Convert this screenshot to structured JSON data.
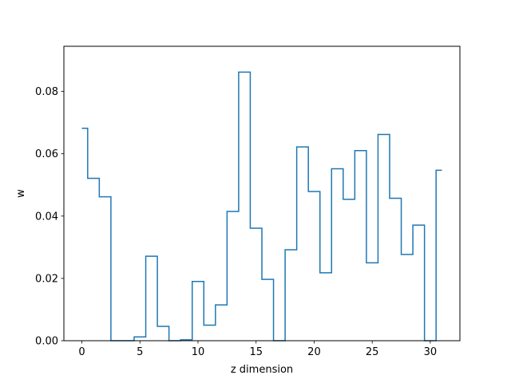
{
  "chart_data": {
    "type": "line",
    "style": "step",
    "xlabel": "z dimension",
    "ylabel": "w",
    "xlim": [
      -1.55,
      32.55
    ],
    "ylim": [
      0,
      0.0945
    ],
    "xticks": [
      0,
      5,
      10,
      15,
      20,
      25,
      30
    ],
    "yticks": [
      0.0,
      0.02,
      0.04,
      0.06,
      0.08
    ],
    "ytick_labels": [
      "0.00",
      "0.02",
      "0.04",
      "0.06",
      "0.08"
    ],
    "grid": false,
    "series_color": "#1f77b4",
    "x": [
      0,
      1,
      2,
      3,
      4,
      5,
      6,
      7,
      8,
      9,
      10,
      11,
      12,
      13,
      14,
      15,
      16,
      17,
      18,
      19,
      20,
      21,
      22,
      23,
      24,
      25,
      26,
      27,
      28,
      29,
      30,
      31
    ],
    "values": [
      0.0682,
      0.0521,
      0.0462,
      0.0,
      0.0,
      0.0012,
      0.0271,
      0.0046,
      0.0,
      0.0003,
      0.019,
      0.005,
      0.0115,
      0.0415,
      0.0862,
      0.0361,
      0.0197,
      0.0,
      0.0292,
      0.0622,
      0.0479,
      0.0218,
      0.0552,
      0.0454,
      0.061,
      0.025,
      0.0662,
      0.0457,
      0.0277,
      0.0371,
      0.0,
      0.0547
    ]
  }
}
